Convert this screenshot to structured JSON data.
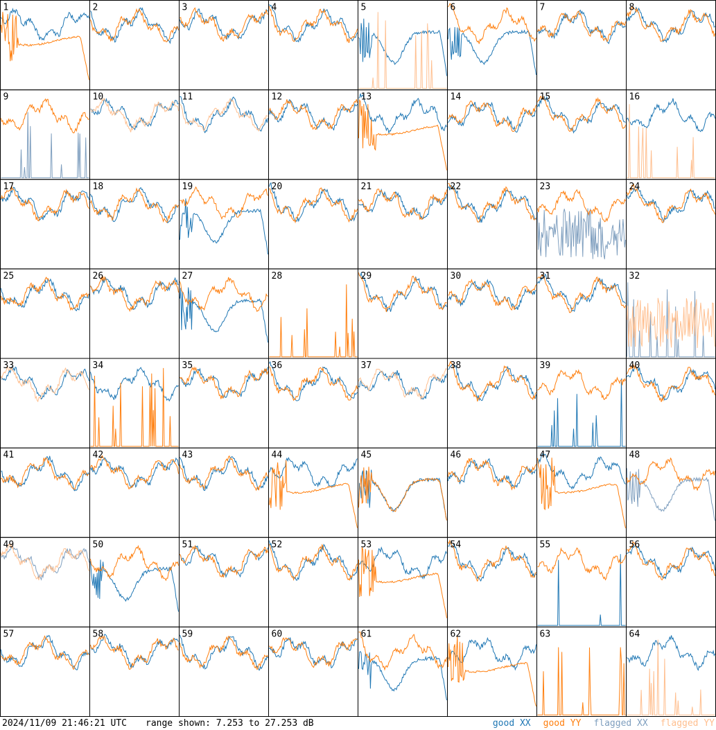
{
  "footer": {
    "timestamp": "2024/11/09 21:46:21 UTC",
    "range_text": "range shown: 7.253 to 27.253 dB"
  },
  "legend": [
    {
      "label": "good XX",
      "color": "#1f77b4"
    },
    {
      "label": "good YY",
      "color": "#ff7f0e"
    },
    {
      "label": "flagged XX",
      "color": "#7f9fbf"
    },
    {
      "label": "flagged YY",
      "color": "#ffbf8f"
    }
  ],
  "chart_data": {
    "type": "line",
    "ylim": [
      7.253,
      27.253
    ],
    "grid": false,
    "legend_placement": "bottom-right",
    "panels": [
      {
        "id": "1",
        "xx": "good",
        "yy": "good",
        "xx_shape": "normal",
        "yy_shape": "decay"
      },
      {
        "id": "2",
        "xx": "good",
        "yy": "good",
        "xx_shape": "normal",
        "yy_shape": "normal"
      },
      {
        "id": "3",
        "xx": "good",
        "yy": "good",
        "xx_shape": "normal",
        "yy_shape": "normal"
      },
      {
        "id": "4",
        "xx": "good",
        "yy": "good",
        "xx_shape": "normal",
        "yy_shape": "normal"
      },
      {
        "id": "5",
        "xx": "good",
        "yy": "flagged",
        "xx_shape": "dip",
        "yy_shape": "sparse"
      },
      {
        "id": "6",
        "xx": "good",
        "yy": "good",
        "xx_shape": "dip",
        "yy_shape": "normal"
      },
      {
        "id": "7",
        "xx": "good",
        "yy": "good",
        "xx_shape": "normal",
        "yy_shape": "normal"
      },
      {
        "id": "8",
        "xx": "good",
        "yy": "good",
        "xx_shape": "normal",
        "yy_shape": "normal"
      },
      {
        "id": "9",
        "xx": "flagged",
        "yy": "good",
        "xx_shape": "sparse",
        "yy_shape": "normal"
      },
      {
        "id": "10",
        "xx": "good",
        "yy": "flagged",
        "xx_shape": "normal",
        "yy_shape": "normal"
      },
      {
        "id": "11",
        "xx": "good",
        "yy": "flagged",
        "xx_shape": "normal",
        "yy_shape": "normal"
      },
      {
        "id": "12",
        "xx": "good",
        "yy": "good",
        "xx_shape": "normal",
        "yy_shape": "normal"
      },
      {
        "id": "13",
        "xx": "good",
        "yy": "good",
        "xx_shape": "normal",
        "yy_shape": "decay"
      },
      {
        "id": "14",
        "xx": "good",
        "yy": "good",
        "xx_shape": "normal",
        "yy_shape": "normal"
      },
      {
        "id": "15",
        "xx": "good",
        "yy": "good",
        "xx_shape": "normal",
        "yy_shape": "normal"
      },
      {
        "id": "16",
        "xx": "good",
        "yy": "flagged",
        "xx_shape": "normal",
        "yy_shape": "sparse"
      },
      {
        "id": "17",
        "xx": "good",
        "yy": "good",
        "xx_shape": "normal",
        "yy_shape": "normal"
      },
      {
        "id": "18",
        "xx": "good",
        "yy": "good",
        "xx_shape": "normal",
        "yy_shape": "normal"
      },
      {
        "id": "19",
        "xx": "good",
        "yy": "good",
        "xx_shape": "dip",
        "yy_shape": "normal"
      },
      {
        "id": "20",
        "xx": "good",
        "yy": "good",
        "xx_shape": "normal",
        "yy_shape": "normal"
      },
      {
        "id": "21",
        "xx": "good",
        "yy": "good",
        "xx_shape": "normal",
        "yy_shape": "normal"
      },
      {
        "id": "22",
        "xx": "good",
        "yy": "good",
        "xx_shape": "normal",
        "yy_shape": "normal"
      },
      {
        "id": "23",
        "xx": "flagged",
        "yy": "good",
        "xx_shape": "noisy",
        "yy_shape": "normal"
      },
      {
        "id": "24",
        "xx": "good",
        "yy": "good",
        "xx_shape": "normal",
        "yy_shape": "normal"
      },
      {
        "id": "25",
        "xx": "good",
        "yy": "good",
        "xx_shape": "normal",
        "yy_shape": "normal"
      },
      {
        "id": "26",
        "xx": "good",
        "yy": "good",
        "xx_shape": "normal",
        "yy_shape": "normal"
      },
      {
        "id": "27",
        "xx": "good",
        "yy": "good",
        "xx_shape": "dip",
        "yy_shape": "normal"
      },
      {
        "id": "28",
        "xx": "none",
        "yy": "good",
        "xx_shape": "none",
        "yy_shape": "sparse"
      },
      {
        "id": "29",
        "xx": "good",
        "yy": "good",
        "xx_shape": "normal",
        "yy_shape": "normal"
      },
      {
        "id": "30",
        "xx": "good",
        "yy": "good",
        "xx_shape": "normal",
        "yy_shape": "normal"
      },
      {
        "id": "31",
        "xx": "good",
        "yy": "good",
        "xx_shape": "normal",
        "yy_shape": "normal"
      },
      {
        "id": "32",
        "xx": "flagged",
        "yy": "flagged",
        "xx_shape": "sparse",
        "yy_shape": "noisy"
      },
      {
        "id": "33",
        "xx": "good",
        "yy": "flagged",
        "xx_shape": "normal",
        "yy_shape": "normal"
      },
      {
        "id": "34",
        "xx": "good",
        "yy": "good",
        "xx_shape": "normal",
        "yy_shape": "sparse"
      },
      {
        "id": "35",
        "xx": "good",
        "yy": "good",
        "xx_shape": "normal",
        "yy_shape": "normal"
      },
      {
        "id": "36",
        "xx": "good",
        "yy": "good",
        "xx_shape": "normal",
        "yy_shape": "normal"
      },
      {
        "id": "37",
        "xx": "good",
        "yy": "flagged",
        "xx_shape": "normal",
        "yy_shape": "normal"
      },
      {
        "id": "38",
        "xx": "good",
        "yy": "good",
        "xx_shape": "normal",
        "yy_shape": "normal"
      },
      {
        "id": "39",
        "xx": "good",
        "yy": "good",
        "xx_shape": "sparse",
        "yy_shape": "normal"
      },
      {
        "id": "40",
        "xx": "good",
        "yy": "good",
        "xx_shape": "normal",
        "yy_shape": "normal"
      },
      {
        "id": "41",
        "xx": "good",
        "yy": "good",
        "xx_shape": "normal",
        "yy_shape": "normal"
      },
      {
        "id": "42",
        "xx": "good",
        "yy": "good",
        "xx_shape": "normal",
        "yy_shape": "normal"
      },
      {
        "id": "43",
        "xx": "good",
        "yy": "good",
        "xx_shape": "normal",
        "yy_shape": "normal"
      },
      {
        "id": "44",
        "xx": "good",
        "yy": "good",
        "xx_shape": "normal",
        "yy_shape": "decay"
      },
      {
        "id": "45",
        "xx": "good",
        "yy": "good",
        "xx_shape": "dip",
        "yy_shape": "dip"
      },
      {
        "id": "46",
        "xx": "good",
        "yy": "good",
        "xx_shape": "normal",
        "yy_shape": "normal"
      },
      {
        "id": "47",
        "xx": "good",
        "yy": "good",
        "xx_shape": "normal",
        "yy_shape": "decay"
      },
      {
        "id": "48",
        "xx": "flagged",
        "yy": "good",
        "xx_shape": "dip",
        "yy_shape": "normal"
      },
      {
        "id": "49",
        "xx": "flagged",
        "yy": "flagged",
        "xx_shape": "normal",
        "yy_shape": "normal"
      },
      {
        "id": "50",
        "xx": "good",
        "yy": "good",
        "xx_shape": "dip",
        "yy_shape": "normal"
      },
      {
        "id": "51",
        "xx": "good",
        "yy": "good",
        "xx_shape": "normal",
        "yy_shape": "normal"
      },
      {
        "id": "52",
        "xx": "good",
        "yy": "good",
        "xx_shape": "normal",
        "yy_shape": "normal"
      },
      {
        "id": "53",
        "xx": "good",
        "yy": "good",
        "xx_shape": "normal",
        "yy_shape": "decay"
      },
      {
        "id": "54",
        "xx": "good",
        "yy": "good",
        "xx_shape": "normal",
        "yy_shape": "normal"
      },
      {
        "id": "55",
        "xx": "good",
        "yy": "good",
        "xx_shape": "sparse",
        "yy_shape": "normal"
      },
      {
        "id": "56",
        "xx": "good",
        "yy": "good",
        "xx_shape": "normal",
        "yy_shape": "normal"
      },
      {
        "id": "57",
        "xx": "good",
        "yy": "good",
        "xx_shape": "normal",
        "yy_shape": "normal"
      },
      {
        "id": "58",
        "xx": "good",
        "yy": "good",
        "xx_shape": "normal",
        "yy_shape": "normal"
      },
      {
        "id": "59",
        "xx": "good",
        "yy": "good",
        "xx_shape": "normal",
        "yy_shape": "normal"
      },
      {
        "id": "60",
        "xx": "good",
        "yy": "good",
        "xx_shape": "normal",
        "yy_shape": "normal"
      },
      {
        "id": "61",
        "xx": "good",
        "yy": "good",
        "xx_shape": "dip",
        "yy_shape": "normal"
      },
      {
        "id": "62",
        "xx": "good",
        "yy": "good",
        "xx_shape": "normal",
        "yy_shape": "decay"
      },
      {
        "id": "63",
        "xx": "none",
        "yy": "good",
        "xx_shape": "none",
        "yy_shape": "sparse"
      },
      {
        "id": "64",
        "xx": "good",
        "yy": "flagged",
        "xx_shape": "normal",
        "yy_shape": "sparse"
      }
    ]
  }
}
